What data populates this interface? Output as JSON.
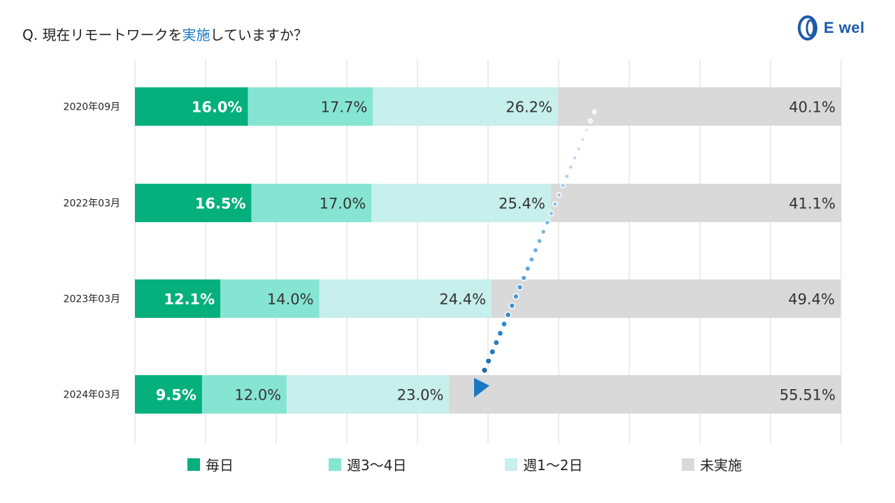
{
  "title": {
    "prefix": "Q. 現在リモートワークを",
    "highlight": "実施",
    "suffix": "していますか？"
  },
  "brand": {
    "logo_text": "E wel"
  },
  "colors": {
    "daily": "#05b07c",
    "three_four": "#86e5d2",
    "one_two": "#c7efec",
    "none": "#d9d9d9",
    "accent": "#1a78c2"
  },
  "chart_data": {
    "type": "bar",
    "orientation": "horizontal-stacked-100",
    "categories": [
      "2020年09月",
      "2022年03月",
      "2023年03月",
      "2024年03月"
    ],
    "series": [
      {
        "name": "毎日",
        "values": [
          16.0,
          16.5,
          12.1,
          9.5
        ],
        "labels": [
          "16.0%",
          "16.5%",
          "12.1%",
          "9.5%"
        ]
      },
      {
        "name": "週3～4日",
        "values": [
          17.7,
          17.0,
          14.0,
          12.0
        ],
        "labels": [
          "17.7%",
          "17.0%",
          "14.0%",
          "12.0%"
        ]
      },
      {
        "name": "週1～2日",
        "values": [
          26.2,
          25.4,
          24.4,
          23.0
        ],
        "labels": [
          "26.2%",
          "25.4%",
          "24.4%",
          "23.0%"
        ]
      },
      {
        "name": "未実施",
        "values": [
          40.1,
          41.1,
          49.4,
          55.51
        ],
        "labels": [
          "40.1%",
          "41.1%",
          "49.4%",
          "55.51%"
        ]
      }
    ],
    "xlim": [
      0,
      100
    ],
    "grid": true,
    "legend": "bottom",
    "annotation": "dotted-arrow-trend-down"
  }
}
